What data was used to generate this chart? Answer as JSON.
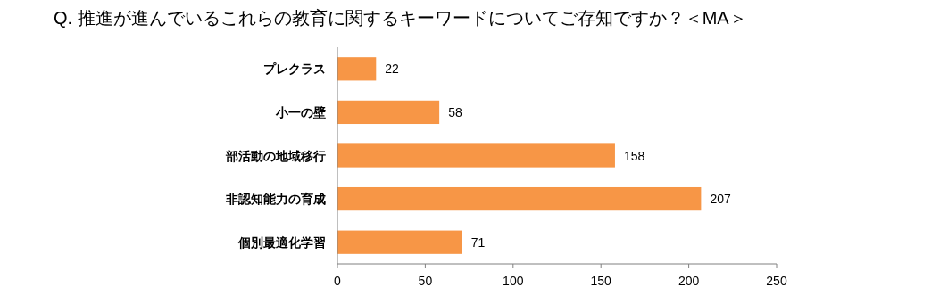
{
  "chart_data": {
    "type": "bar",
    "orientation": "horizontal",
    "title": "Q. 推進が進んでいるこれらの教育に関するキーワードについてご存知ですか？＜MA＞",
    "categories": [
      "プレクラス",
      "小一の壁",
      "部活動の地域移行",
      "非認知能力の育成",
      "個別最適化学習"
    ],
    "values": [
      22,
      58,
      158,
      207,
      71
    ],
    "color": "#f79646",
    "xlim": [
      0,
      250
    ],
    "xticks": [
      0,
      50,
      100,
      150,
      200,
      250
    ],
    "data_labels": true
  }
}
